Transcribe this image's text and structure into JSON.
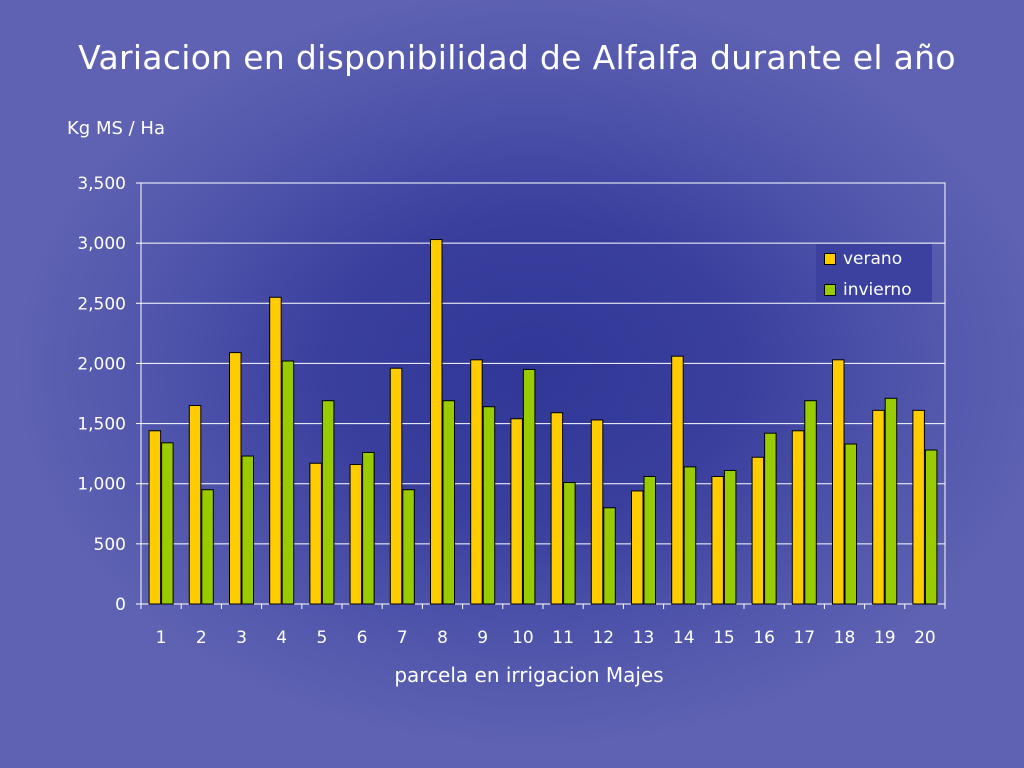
{
  "slide": {
    "title": "Variacion en disponibilidad de Alfalfa durante el año"
  },
  "chart_data": {
    "type": "bar",
    "title": "Variacion en disponibilidad de Alfalfa durante el año",
    "ylabel": "Kg MS / Ha",
    "xlabel": "parcela en irrigacion Majes",
    "categories": [
      "1",
      "2",
      "3",
      "4",
      "5",
      "6",
      "7",
      "8",
      "9",
      "10",
      "11",
      "12",
      "13",
      "14",
      "15",
      "16",
      "17",
      "18",
      "19",
      "20"
    ],
    "series": [
      {
        "name": "verano",
        "color": "#ffcc00",
        "values": [
          1440,
          1650,
          2090,
          2550,
          1170,
          1160,
          1960,
          3030,
          2030,
          1540,
          1590,
          1530,
          940,
          2060,
          1060,
          1220,
          1440,
          2030,
          1610,
          1610
        ]
      },
      {
        "name": "invierno",
        "color": "#99cc00",
        "values": [
          1340,
          950,
          1230,
          2020,
          1690,
          1260,
          950,
          1690,
          1640,
          1950,
          1010,
          800,
          1060,
          1140,
          1110,
          1420,
          1690,
          1330,
          1710,
          1280
        ]
      }
    ],
    "ylim": [
      0,
      3500
    ],
    "yticks": [
      0,
      500,
      1000,
      1500,
      2000,
      2500,
      3000,
      3500
    ],
    "ytick_labels": [
      "0",
      "500",
      "1,000",
      "1,500",
      "2,000",
      "2,500",
      "3,000",
      "3,500"
    ],
    "grid": true,
    "legend_position": "top-right"
  }
}
